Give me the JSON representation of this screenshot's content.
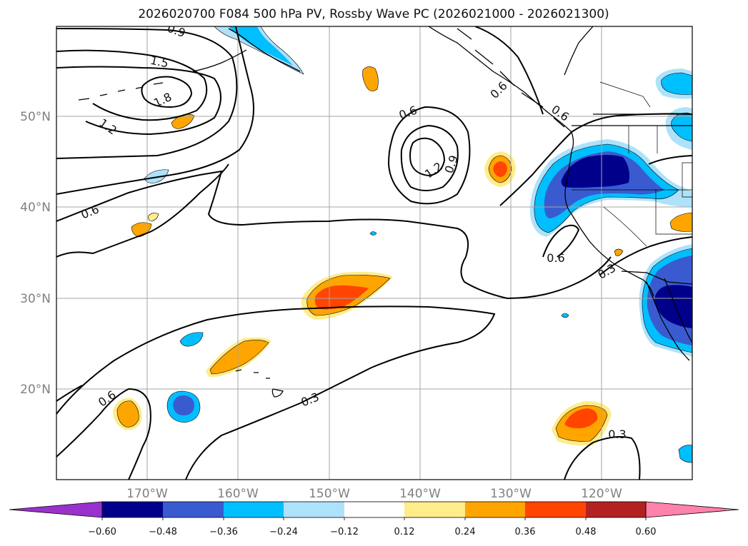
{
  "title": "2026020700 F084 500 hPa PV, Rossby Wave PC (2026021000 - 2026021300)",
  "map": {
    "lon_labels": [
      "170°W",
      "160°W",
      "150°W",
      "140°W",
      "130°W",
      "120°W"
    ],
    "lat_labels": [
      "50°N",
      "40°N",
      "30°N",
      "20°N"
    ],
    "contour_labels": [
      "0.9",
      "1.5",
      "1.8",
      "1.2",
      "0.6",
      "0.6",
      "1.2",
      "0.9",
      "0.6",
      "0.6",
      "0.6",
      "0.3",
      "0.3",
      "0.3",
      "0.6"
    ]
  },
  "colorbar": {
    "ticks": [
      "−0.60",
      "−0.48",
      "−0.36",
      "−0.24",
      "−0.12",
      "0.12",
      "0.24",
      "0.36",
      "0.48",
      "0.60"
    ],
    "colors": [
      "#9932cc",
      "#00008b",
      "#3a5bd0",
      "#00bfff",
      "#aee2fb",
      "#ffffff",
      "#ffec8b",
      "#ffa500",
      "#ff4500",
      "#b22222",
      "#ff82ab"
    ]
  },
  "colors": {
    "pos_light": "#ffec8b",
    "pos_mid": "#ffa500",
    "pos_strong": "#ff4500",
    "neg_light": "#aee2fb",
    "neg_mid": "#00bfff",
    "neg_strong": "#3a5bd0",
    "neg_max": "#00008b"
  }
}
